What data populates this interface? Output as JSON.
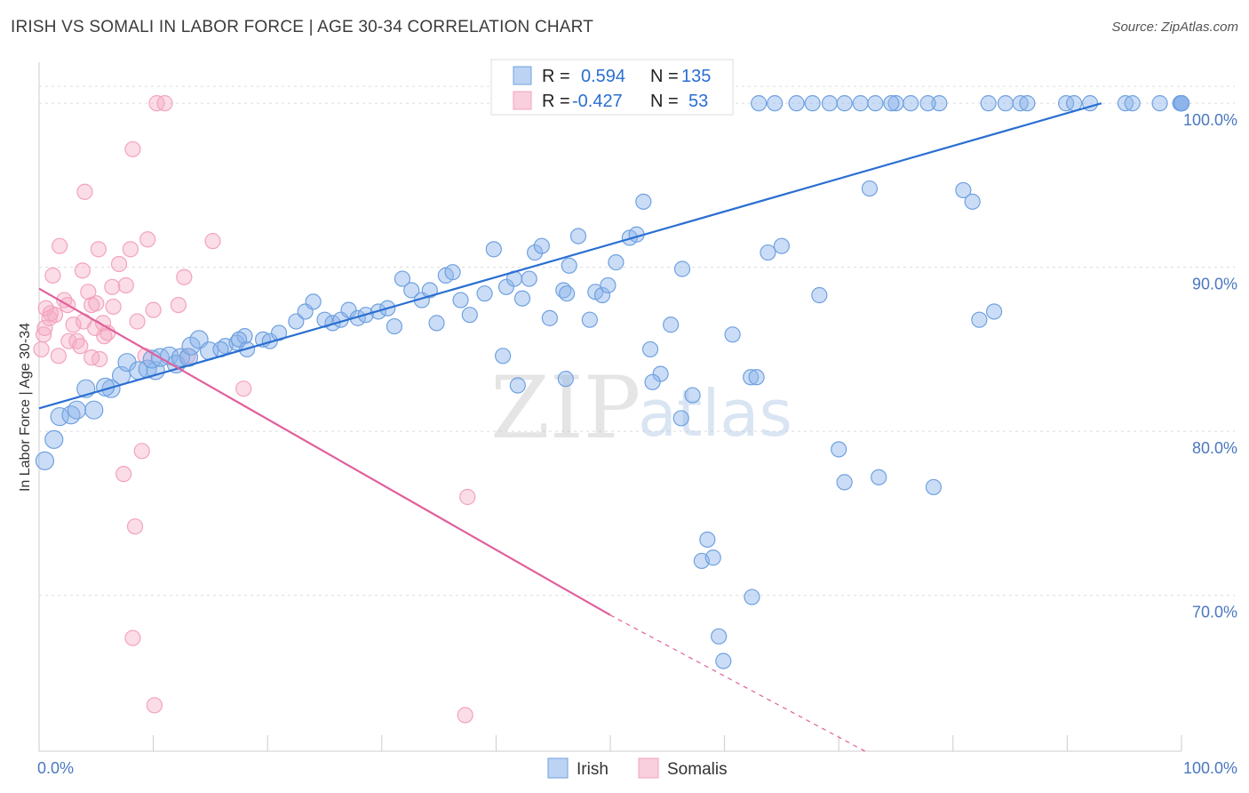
{
  "title": "IRISH VS SOMALI IN LABOR FORCE | AGE 30-34 CORRELATION CHART",
  "source": "Source: ZipAtlas.com",
  "colors": {
    "irish": "#6fa1e0",
    "somali": "#f3a3bd",
    "irish_line": "#2a6fd1",
    "somali_line": "#e0609a",
    "tick_text": "#4a78c0"
  },
  "chart_data": {
    "type": "scatter",
    "title": "IRISH VS SOMALI IN LABOR FORCE | AGE 30-34 CORRELATION CHART",
    "ylabel": "In Labor Force | Age 30-34",
    "xlim": [
      0,
      100
    ],
    "ylim": [
      60.5,
      102.5
    ],
    "x_tick_labels": [
      "0.0%",
      "100.0%"
    ],
    "y_ticks": [
      70,
      80,
      90,
      100
    ],
    "y_tick_labels": [
      "70.0%",
      "80.0%",
      "90.0%",
      "100.0%"
    ],
    "watermark": {
      "zip": "ZIP",
      "atlas": "atlas"
    },
    "legend": {
      "r_label": "R =",
      "n_label": "N =",
      "entries": [
        {
          "name": "Irish",
          "r": "0.594",
          "n": "135"
        },
        {
          "name": "Somalis",
          "r": "-0.427",
          "n": "53"
        }
      ]
    },
    "series": [
      {
        "name": "Irish",
        "trend": {
          "x0": 0,
          "y0": 81.4,
          "x1": 93.0,
          "y1": 100.0,
          "dashed_to": null
        },
        "points": [
          [
            0.5,
            78.2
          ],
          [
            1.3,
            79.5
          ],
          [
            1.8,
            80.9
          ],
          [
            2.8,
            81.0
          ],
          [
            3.3,
            81.3
          ],
          [
            4.8,
            81.3
          ],
          [
            4.1,
            82.6
          ],
          [
            6.3,
            82.6
          ],
          [
            5.8,
            82.7
          ],
          [
            7.2,
            83.4
          ],
          [
            7.7,
            84.2
          ],
          [
            8.7,
            83.7
          ],
          [
            9.5,
            83.8
          ],
          [
            10.2,
            83.7
          ],
          [
            9.9,
            84.4
          ],
          [
            10.6,
            84.5
          ],
          [
            11.4,
            84.6
          ],
          [
            12.0,
            84.1
          ],
          [
            12.4,
            84.5
          ],
          [
            13.1,
            84.5
          ],
          [
            13.3,
            85.2
          ],
          [
            14.0,
            85.6
          ],
          [
            14.9,
            84.9
          ],
          [
            16.3,
            85.2
          ],
          [
            15.9,
            85.0
          ],
          [
            17.3,
            85.4
          ],
          [
            18.0,
            85.8
          ],
          [
            17.5,
            85.6
          ],
          [
            18.2,
            85.0
          ],
          [
            19.6,
            85.6
          ],
          [
            20.2,
            85.5
          ],
          [
            21.0,
            86.0
          ],
          [
            22.5,
            86.7
          ],
          [
            23.3,
            87.3
          ],
          [
            24.0,
            87.9
          ],
          [
            25.0,
            86.8
          ],
          [
            25.7,
            86.6
          ],
          [
            26.4,
            86.8
          ],
          [
            27.1,
            87.4
          ],
          [
            27.9,
            86.9
          ],
          [
            28.6,
            87.1
          ],
          [
            29.7,
            87.3
          ],
          [
            30.5,
            87.5
          ],
          [
            31.1,
            86.4
          ],
          [
            31.8,
            89.3
          ],
          [
            32.6,
            88.6
          ],
          [
            33.5,
            88.0
          ],
          [
            34.2,
            88.6
          ],
          [
            34.8,
            86.6
          ],
          [
            35.6,
            89.5
          ],
          [
            36.2,
            89.7
          ],
          [
            36.9,
            88.0
          ],
          [
            37.7,
            87.1
          ],
          [
            39.0,
            88.4
          ],
          [
            39.8,
            91.1
          ],
          [
            40.9,
            88.8
          ],
          [
            41.6,
            89.3
          ],
          [
            42.3,
            88.1
          ],
          [
            42.9,
            89.3
          ],
          [
            43.4,
            90.9
          ],
          [
            44.0,
            91.3
          ],
          [
            44.7,
            86.9
          ],
          [
            45.9,
            88.6
          ],
          [
            46.4,
            90.1
          ],
          [
            47.2,
            91.9
          ],
          [
            46.2,
            88.4
          ],
          [
            48.2,
            86.8
          ],
          [
            48.7,
            88.5
          ],
          [
            49.3,
            88.3
          ],
          [
            49.8,
            88.9
          ],
          [
            50.5,
            90.3
          ],
          [
            51.7,
            91.8
          ],
          [
            52.3,
            92.0
          ],
          [
            52.9,
            94.0
          ],
          [
            53.5,
            85.0
          ],
          [
            54.4,
            83.5
          ],
          [
            53.7,
            83.0
          ],
          [
            55.3,
            86.5
          ],
          [
            56.2,
            80.8
          ],
          [
            57.2,
            82.2
          ],
          [
            40.6,
            84.6
          ],
          [
            41.9,
            82.8
          ],
          [
            46.1,
            83.2
          ],
          [
            58.0,
            72.1
          ],
          [
            58.5,
            73.4
          ],
          [
            59.0,
            72.3
          ],
          [
            59.5,
            67.5
          ],
          [
            59.9,
            66.0
          ],
          [
            62.3,
            83.3
          ],
          [
            62.8,
            83.3
          ],
          [
            63.8,
            90.9
          ],
          [
            65.0,
            91.3
          ],
          [
            68.3,
            88.3
          ],
          [
            70.0,
            78.9
          ],
          [
            70.5,
            76.9
          ],
          [
            72.7,
            94.8
          ],
          [
            73.5,
            77.2
          ],
          [
            75.0,
            100
          ],
          [
            78.8,
            100
          ],
          [
            80.9,
            94.7
          ],
          [
            81.7,
            94.0
          ],
          [
            82.3,
            86.8
          ],
          [
            83.6,
            87.3
          ],
          [
            56.3,
            89.9
          ],
          [
            60.7,
            85.9
          ],
          [
            62.4,
            69.9
          ],
          [
            78.3,
            76.6
          ],
          [
            63.0,
            100
          ],
          [
            64.4,
            100
          ],
          [
            66.3,
            100
          ],
          [
            67.7,
            100
          ],
          [
            69.2,
            100
          ],
          [
            70.5,
            100
          ],
          [
            71.9,
            100
          ],
          [
            73.2,
            100
          ],
          [
            74.6,
            100
          ],
          [
            76.3,
            100
          ],
          [
            77.8,
            100
          ],
          [
            83.1,
            100
          ],
          [
            84.6,
            100
          ],
          [
            85.9,
            100
          ],
          [
            86.5,
            100
          ],
          [
            89.9,
            100
          ],
          [
            90.6,
            100
          ],
          [
            92.0,
            100
          ],
          [
            95.1,
            100
          ],
          [
            95.7,
            100
          ],
          [
            98.1,
            100
          ],
          [
            99.9,
            100
          ],
          [
            100,
            100
          ],
          [
            100,
            100
          ],
          [
            100,
            100
          ],
          [
            100,
            100
          ],
          [
            100,
            100
          ],
          [
            100,
            100
          ]
        ]
      },
      {
        "name": "Somalis",
        "trend": {
          "x0": 0,
          "y0": 88.7,
          "x1": 50.0,
          "y1": 68.8,
          "dashed_to": {
            "x": 72.3,
            "y": 60.5
          }
        },
        "points": [
          [
            0.2,
            85.0
          ],
          [
            0.4,
            85.9
          ],
          [
            0.5,
            86.3
          ],
          [
            0.6,
            87.5
          ],
          [
            0.9,
            86.9
          ],
          [
            1.2,
            89.5
          ],
          [
            1.4,
            87.1
          ],
          [
            1.7,
            84.6
          ],
          [
            1.8,
            91.3
          ],
          [
            2.2,
            88.0
          ],
          [
            2.5,
            87.7
          ],
          [
            2.6,
            85.5
          ],
          [
            3.0,
            86.5
          ],
          [
            3.3,
            85.5
          ],
          [
            3.6,
            85.2
          ],
          [
            3.9,
            86.7
          ],
          [
            3.8,
            89.8
          ],
          [
            4.0,
            94.6
          ],
          [
            4.3,
            88.5
          ],
          [
            4.6,
            87.7
          ],
          [
            4.9,
            86.3
          ],
          [
            5.0,
            87.8
          ],
          [
            5.3,
            84.4
          ],
          [
            5.2,
            91.1
          ],
          [
            5.7,
            85.8
          ],
          [
            6.0,
            86.0
          ],
          [
            6.4,
            88.8
          ],
          [
            6.5,
            87.6
          ],
          [
            7.0,
            90.2
          ],
          [
            7.6,
            88.9
          ],
          [
            8.0,
            91.1
          ],
          [
            8.2,
            97.2
          ],
          [
            8.6,
            86.7
          ],
          [
            9.0,
            78.8
          ],
          [
            9.3,
            84.6
          ],
          [
            9.5,
            91.7
          ],
          [
            10.0,
            87.4
          ],
          [
            10.3,
            100
          ],
          [
            11.0,
            100
          ],
          [
            12.2,
            87.7
          ],
          [
            12.7,
            89.4
          ],
          [
            13.0,
            84.6
          ],
          [
            15.2,
            91.6
          ],
          [
            17.9,
            82.6
          ],
          [
            4.6,
            84.5
          ],
          [
            5.6,
            86.6
          ],
          [
            7.4,
            77.4
          ],
          [
            8.4,
            74.2
          ],
          [
            8.2,
            67.4
          ],
          [
            10.1,
            63.3
          ],
          [
            37.5,
            76.0
          ],
          [
            37.3,
            62.7
          ],
          [
            1.0,
            87.2
          ]
        ]
      }
    ]
  }
}
